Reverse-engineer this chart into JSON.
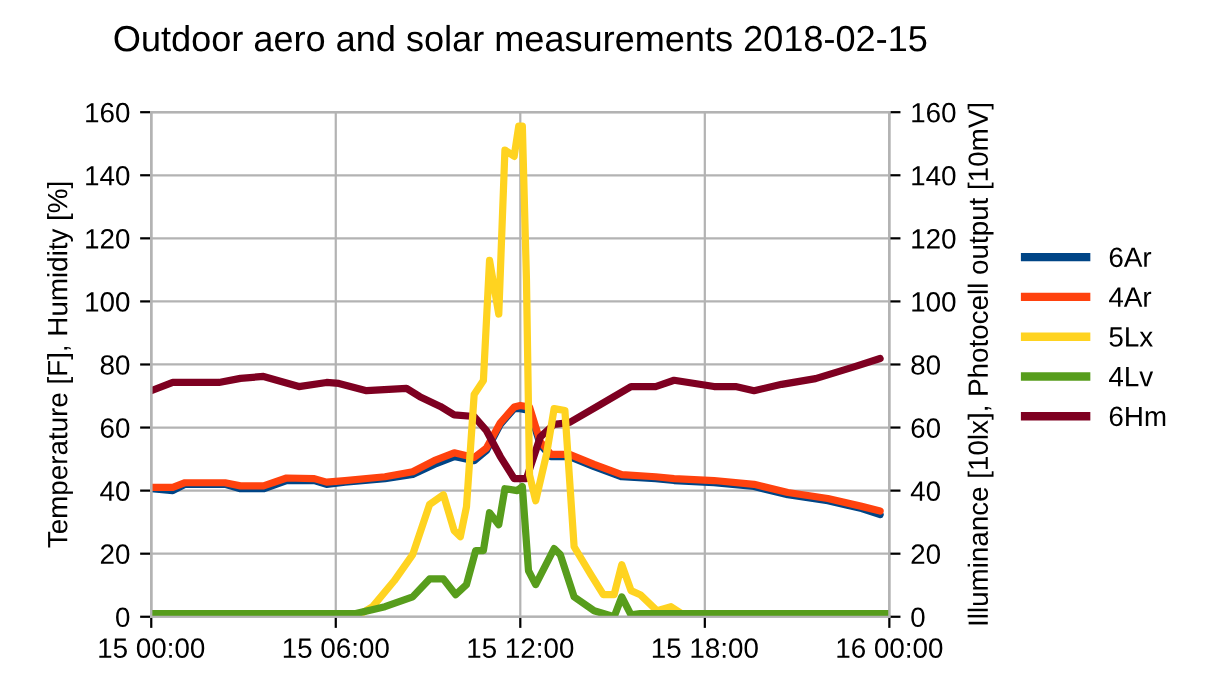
{
  "chart_data": {
    "type": "line",
    "title": "Outdoor aero and solar measurements 2018-02-15",
    "ylabel": "Temperature [F], Humidity [%]",
    "y2label": "Illuminance [10lx], Photocell output [10mV]",
    "xlim": [
      "2018-02-15T00:00",
      "2018-02-16T00:00"
    ],
    "xticks": [
      {
        "value": "2018-02-15T00:00",
        "label": "15 00:00"
      },
      {
        "value": "2018-02-15T06:00",
        "label": "15 06:00"
      },
      {
        "value": "2018-02-15T12:00",
        "label": "15 12:00"
      },
      {
        "value": "2018-02-15T18:00",
        "label": "15 18:00"
      },
      {
        "value": "2018-02-16T00:00",
        "label": "16 00:00"
      }
    ],
    "ylim": [
      0,
      160
    ],
    "yticks": [
      0,
      20,
      40,
      60,
      80,
      100,
      120,
      140,
      160
    ],
    "y2lim": [
      0,
      160
    ],
    "y2ticks": [
      0,
      20,
      40,
      60,
      80,
      100,
      120,
      140,
      160
    ],
    "grid": true,
    "legend": "right",
    "line_style": "solid",
    "marker": "none",
    "series": [
      {
        "name": "6Ar",
        "color": "#004586",
        "x": [
          "2018-02-15T00:00",
          "2018-02-15T00:42",
          "2018-02-15T01:06",
          "2018-02-15T02:24",
          "2018-02-15T02:54",
          "2018-02-15T03:39",
          "2018-02-15T04:24",
          "2018-02-15T05:18",
          "2018-02-15T05:42",
          "2018-02-15T06:18",
          "2018-02-15T07:36",
          "2018-02-15T08:30",
          "2018-02-15T09:12",
          "2018-02-15T09:51",
          "2018-02-15T10:30",
          "2018-02-15T10:54",
          "2018-02-15T11:21",
          "2018-02-15T11:48",
          "2018-02-15T12:00",
          "2018-02-15T12:18",
          "2018-02-15T12:39",
          "2018-02-15T13:00",
          "2018-02-15T13:36",
          "2018-02-15T14:24",
          "2018-02-15T15:18",
          "2018-02-15T16:24",
          "2018-02-15T17:00",
          "2018-02-15T18:18",
          "2018-02-15T19:36",
          "2018-02-15T20:42",
          "2018-02-15T22:00",
          "2018-02-15T23:06",
          "2018-02-15T23:42"
        ],
        "values": [
          40.6,
          40,
          42,
          42,
          40.6,
          40.6,
          43.2,
          43.2,
          42,
          42.7,
          43.8,
          45.1,
          48.3,
          50.8,
          49.5,
          52.7,
          61,
          66,
          66,
          65.4,
          54.6,
          50.8,
          50.8,
          47.6,
          44.4,
          43.8,
          43.2,
          42.5,
          41.3,
          38.7,
          36.8,
          34.3,
          32.4
        ]
      },
      {
        "name": "4Ar",
        "color": "#ff420e",
        "x": [
          "2018-02-15T00:00",
          "2018-02-15T00:42",
          "2018-02-15T01:06",
          "2018-02-15T02:24",
          "2018-02-15T02:54",
          "2018-02-15T03:39",
          "2018-02-15T04:24",
          "2018-02-15T05:18",
          "2018-02-15T05:42",
          "2018-02-15T06:18",
          "2018-02-15T07:36",
          "2018-02-15T08:30",
          "2018-02-15T09:12",
          "2018-02-15T09:51",
          "2018-02-15T10:30",
          "2018-02-15T10:54",
          "2018-02-15T11:21",
          "2018-02-15T11:48",
          "2018-02-15T12:00",
          "2018-02-15T12:18",
          "2018-02-15T12:39",
          "2018-02-15T13:00",
          "2018-02-15T13:36",
          "2018-02-15T14:24",
          "2018-02-15T15:18",
          "2018-02-15T16:24",
          "2018-02-15T17:00",
          "2018-02-15T18:18",
          "2018-02-15T19:36",
          "2018-02-15T20:42",
          "2018-02-15T22:00",
          "2018-02-15T23:06",
          "2018-02-15T23:42"
        ],
        "values": [
          41,
          41,
          42.5,
          42.5,
          41.5,
          41.5,
          44,
          43.8,
          42.7,
          43.2,
          44.4,
          46,
          49.5,
          52,
          50.5,
          53.5,
          61.5,
          66.5,
          67,
          66.5,
          55.5,
          51.5,
          51.5,
          48.3,
          45.1,
          44.4,
          43.8,
          43.2,
          42,
          39.4,
          37.5,
          35,
          33.5
        ]
      },
      {
        "name": "5Lx",
        "color": "#ffd320",
        "axis": "y2",
        "x": [
          "2018-02-15T00:00",
          "2018-02-15T06:39",
          "2018-02-15T07:12",
          "2018-02-15T07:54",
          "2018-02-15T08:30",
          "2018-02-15T09:03",
          "2018-02-15T09:30",
          "2018-02-15T09:51",
          "2018-02-15T10:03",
          "2018-02-15T10:15",
          "2018-02-15T10:30",
          "2018-02-15T10:48",
          "2018-02-15T11:00",
          "2018-02-15T11:18",
          "2018-02-15T11:30",
          "2018-02-15T11:48",
          "2018-02-15T11:57",
          "2018-02-15T12:04",
          "2018-02-15T12:12",
          "2018-02-15T12:18",
          "2018-02-15T12:30",
          "2018-02-15T12:51",
          "2018-02-15T13:06",
          "2018-02-15T13:27",
          "2018-02-15T13:45",
          "2018-02-15T14:18",
          "2018-02-15T14:42",
          "2018-02-15T15:03",
          "2018-02-15T15:18",
          "2018-02-15T15:36",
          "2018-02-15T15:54",
          "2018-02-15T16:27",
          "2018-02-15T16:54",
          "2018-02-15T17:24",
          "2018-02-16T00:00"
        ],
        "values": [
          0,
          0,
          3.2,
          11.4,
          19.7,
          35.6,
          38.7,
          27.3,
          25.4,
          34.9,
          70.5,
          74.9,
          113,
          96,
          148,
          146,
          155.6,
          155.6,
          107,
          45,
          36.8,
          51.4,
          66,
          65.4,
          22.2,
          13.3,
          7,
          7,
          16.5,
          8.3,
          7,
          1.9,
          3.2,
          0,
          0
        ]
      },
      {
        "name": "4Lv",
        "color": "#579d1c",
        "axis": "y2",
        "x": [
          "2018-02-15T00:00",
          "2018-02-15T06:39",
          "2018-02-15T07:36",
          "2018-02-15T08:30",
          "2018-02-15T09:03",
          "2018-02-15T09:30",
          "2018-02-15T09:54",
          "2018-02-15T10:15",
          "2018-02-15T10:33",
          "2018-02-15T10:48",
          "2018-02-15T11:00",
          "2018-02-15T11:18",
          "2018-02-15T11:30",
          "2018-02-15T11:54",
          "2018-02-15T12:04",
          "2018-02-15T12:16",
          "2018-02-15T12:30",
          "2018-02-15T13:06",
          "2018-02-15T13:18",
          "2018-02-15T13:45",
          "2018-02-15T14:24",
          "2018-02-15T15:03",
          "2018-02-15T15:18",
          "2018-02-15T15:36",
          "2018-02-15T15:54",
          "2018-02-16T00:00"
        ],
        "values": [
          1,
          1,
          3.2,
          6.3,
          12,
          12,
          7,
          10.2,
          21,
          21,
          33,
          29.2,
          40.6,
          40,
          41.3,
          14.6,
          10.2,
          21.6,
          19.7,
          6.3,
          1.9,
          0,
          6.3,
          0.6,
          1,
          1
        ]
      },
      {
        "name": "6Hm",
        "color": "#7e0021",
        "x": [
          "2018-02-15T00:00",
          "2018-02-15T00:42",
          "2018-02-15T02:12",
          "2018-02-15T02:54",
          "2018-02-15T03:39",
          "2018-02-15T04:48",
          "2018-02-15T05:42",
          "2018-02-15T06:06",
          "2018-02-15T07:00",
          "2018-02-15T08:18",
          "2018-02-15T08:44",
          "2018-02-15T09:24",
          "2018-02-15T09:51",
          "2018-02-15T10:30",
          "2018-02-15T10:54",
          "2018-02-15T11:21",
          "2018-02-15T11:48",
          "2018-02-15T12:12",
          "2018-02-15T12:39",
          "2018-02-15T13:06",
          "2018-02-15T13:36",
          "2018-02-15T14:36",
          "2018-02-15T15:36",
          "2018-02-15T16:24",
          "2018-02-15T17:00",
          "2018-02-15T18:18",
          "2018-02-15T19:00",
          "2018-02-15T19:36",
          "2018-02-15T20:30",
          "2018-02-15T21:36",
          "2018-02-15T22:54",
          "2018-02-15T23:42"
        ],
        "values": [
          71.7,
          74.3,
          74.3,
          75.6,
          76.2,
          73,
          74.3,
          74,
          71.7,
          72.4,
          69.8,
          66.7,
          64,
          63.5,
          59,
          50.8,
          43.8,
          43.8,
          57,
          61,
          61.6,
          67.3,
          73,
          73,
          75,
          73,
          73,
          71.7,
          73.7,
          75.5,
          79.4,
          81.9
        ]
      }
    ]
  }
}
